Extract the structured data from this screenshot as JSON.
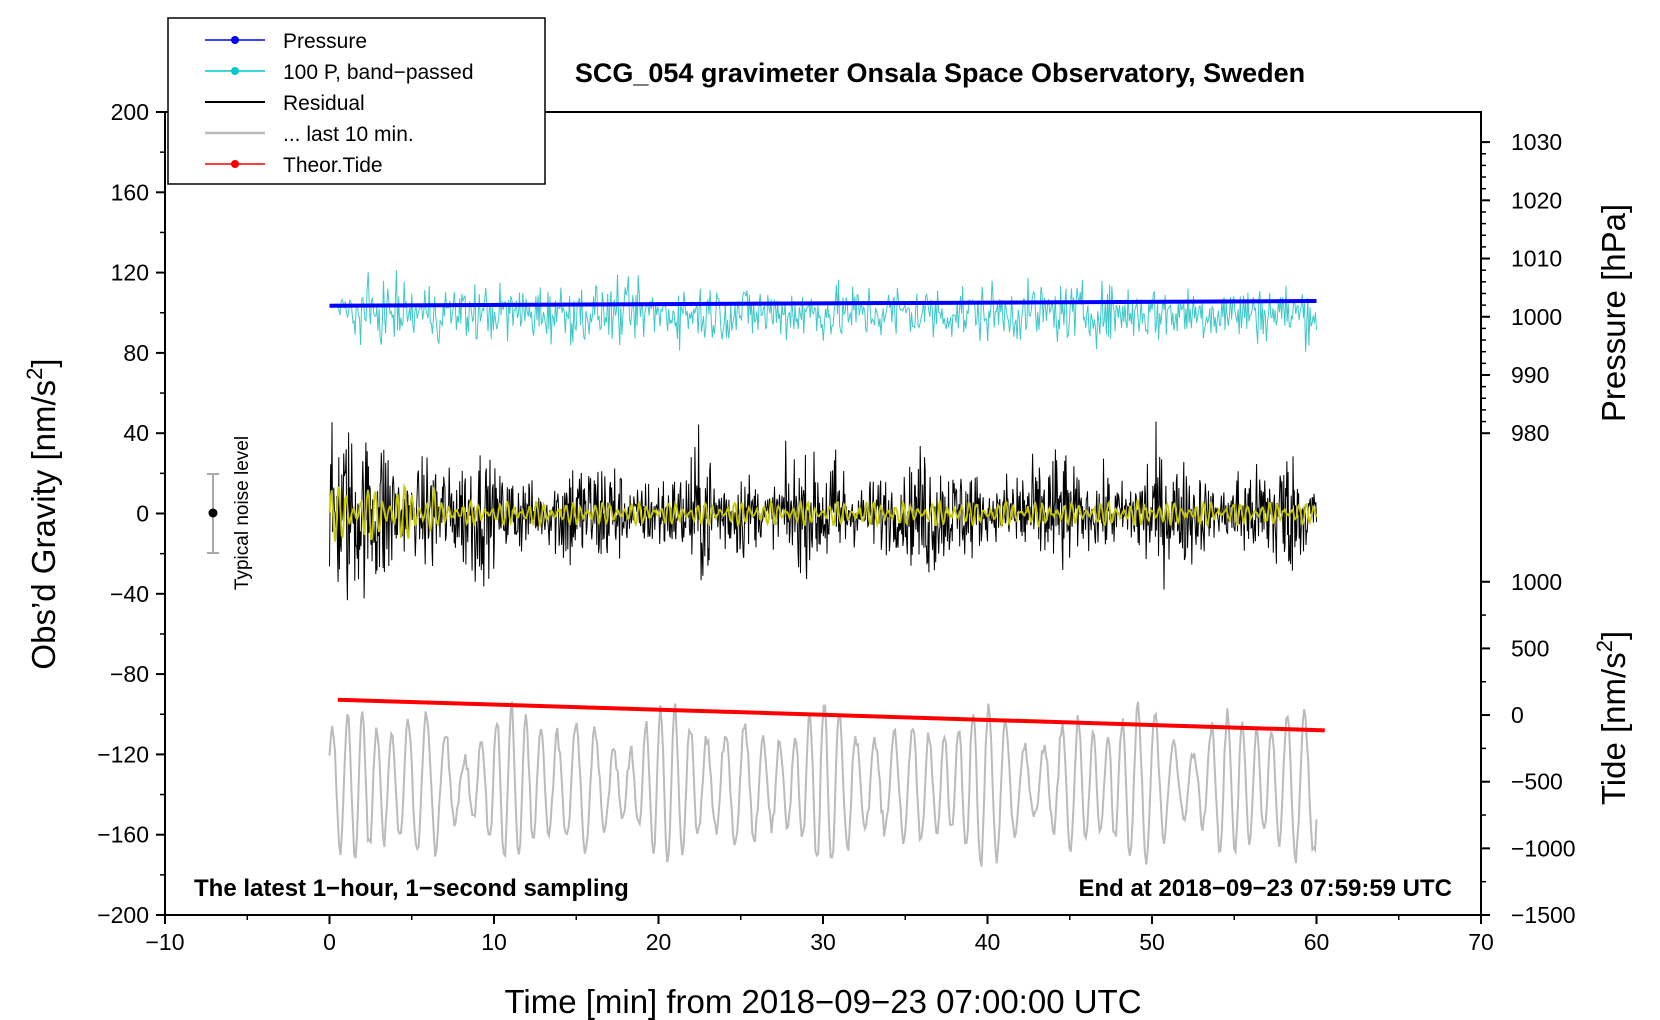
{
  "chart_data": {
    "type": "line",
    "title": "SCG_054 gravimeter Onsala Space Observatory, Sweden",
    "xlabel": "Time [min] from 2018−09−23 07:00:00 UTC",
    "ylabel_main": "Obs’d Gravity [nm/s",
    "ylabel_main_sup": "2",
    "ylabel_main_end": "]",
    "ylabel_pressure": "Pressure [hPa]",
    "ylabel_tide": "Tide [nm/s",
    "ylabel_tide_sup": "2",
    "ylabel_tide_end": "]",
    "xlim": [
      -10,
      70
    ],
    "ylim": [
      -200,
      200
    ],
    "x_ticks": [
      -10,
      0,
      10,
      20,
      30,
      40,
      50,
      60,
      70
    ],
    "x_tick_labels": [
      "−10",
      "0",
      "10",
      "20",
      "30",
      "40",
      "50",
      "60",
      "70"
    ],
    "y_ticks": [
      -200,
      -160,
      -120,
      -80,
      -40,
      0,
      40,
      80,
      120,
      160,
      200
    ],
    "y_tick_labels": [
      "−200",
      "−160",
      "−120",
      "−80",
      "−40",
      "0",
      "40",
      "80",
      "120",
      "160",
      "200"
    ],
    "pressure_ticks": [
      980,
      990,
      1000,
      1010,
      1020,
      1030
    ],
    "pressure_tick_labels": [
      "980",
      "990",
      "1000",
      "1010",
      "1020",
      "1030"
    ],
    "pressure_axis": {
      "value_980_at_gravity": 40,
      "value_1030_at_gravity": 185
    },
    "tide_ticks": [
      -1500,
      -1000,
      -500,
      0,
      500,
      1000
    ],
    "tide_tick_labels": [
      "−1500",
      "−1000",
      "−500",
      "0",
      "500",
      "1000"
    ],
    "tide_axis": {
      "value_minus1500_at_gravity": -200,
      "value_1000_at_gravity": -34
    },
    "legend": [
      {
        "label": "Pressure",
        "color": "#0000ff",
        "marker": true
      },
      {
        "label": "100 P, band−passed",
        "color": "#00c8c8",
        "marker": true
      },
      {
        "label": "Residual",
        "color": "#000000",
        "marker": false
      },
      {
        "label": "... last 10 min.",
        "color": "#bbbbbb",
        "marker": false
      },
      {
        "label": "Theor.Tide",
        "color": "#ff0000",
        "marker": true
      }
    ],
    "series": [
      {
        "name": "Pressure",
        "color": "#0000ff",
        "x": [
          0,
          60
        ],
        "pressure_hpa": [
          1001.9,
          1002.7
        ]
      },
      {
        "name": "100 P, band-passed",
        "color": "#40c8c8",
        "x_range": [
          0.5,
          60
        ],
        "gravity_center": 100,
        "gravity_amplitude": 20
      },
      {
        "name": "Residual",
        "color": "#000000",
        "x_range": [
          0,
          60
        ],
        "gravity_center": 0,
        "gravity_amplitude": 40
      },
      {
        "name": "Residual smoothed",
        "color": "#c8c800",
        "x_range": [
          0,
          60
        ],
        "gravity_center": 0,
        "gravity_amplitude": 6
      },
      {
        "name": "... last 10 min.",
        "color": "#bbbbbb",
        "x_range": [
          0,
          60
        ],
        "gravity_center": -135,
        "gravity_amplitude": 30
      },
      {
        "name": "Theor.Tide",
        "color": "#ff0000",
        "x": [
          0.5,
          60.5
        ],
        "tide_nm_s2": [
          115,
          -115
        ]
      }
    ],
    "noise_indicator": {
      "label": "Typical noise level",
      "x": -7,
      "y": 0,
      "y_low": -20,
      "y_high": 20
    },
    "footer_left": "The latest 1−hour, 1−second sampling",
    "footer_right": "End at 2018−09−23 07:59:59 UTC"
  }
}
